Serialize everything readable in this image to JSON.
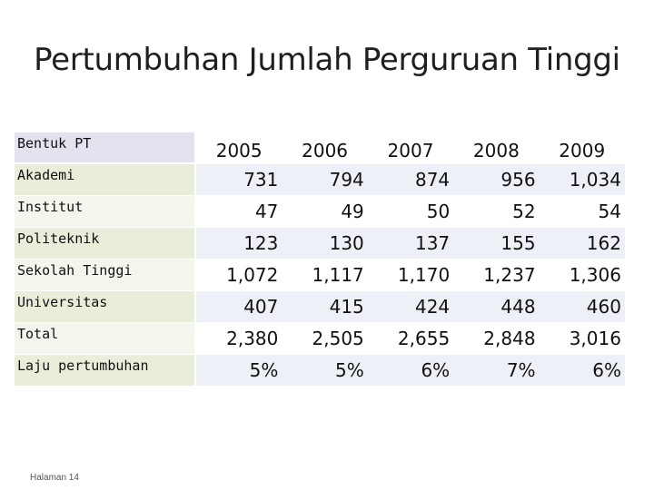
{
  "title": "Pertumbuhan Jumlah Perguruan Tinggi",
  "table": {
    "header_label": "Bentuk PT",
    "years": [
      "2005",
      "2006",
      "2007",
      "2008",
      "2009"
    ],
    "rows": [
      {
        "label": "Akademi",
        "values": [
          "731",
          "794",
          "874",
          "956",
          "1,034"
        ]
      },
      {
        "label": "Institut",
        "values": [
          "47",
          "49",
          "50",
          "52",
          "54"
        ]
      },
      {
        "label": "Politeknik",
        "values": [
          "123",
          "130",
          "137",
          "155",
          "162"
        ]
      },
      {
        "label": "Sekolah Tinggi",
        "values": [
          "1,072",
          "1,117",
          "1,170",
          "1,237",
          "1,306"
        ]
      },
      {
        "label": "Universitas",
        "values": [
          "407",
          "415",
          "424",
          "448",
          "460"
        ]
      },
      {
        "label": "Total",
        "values": [
          "2,380",
          "2,505",
          "2,655",
          "2,848",
          "3,016"
        ]
      },
      {
        "label": "Laju pertumbuhan",
        "values": [
          "5%",
          "5%",
          "6%",
          "7%",
          "6%"
        ]
      }
    ]
  },
  "footer": "Halaman 14"
}
